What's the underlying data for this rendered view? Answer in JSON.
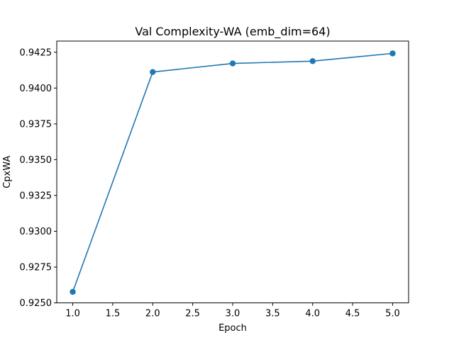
{
  "chart_data": {
    "type": "line",
    "title": "Val Complexity-WA (emb_dim=64)",
    "xlabel": "Epoch",
    "ylabel": "CpxWA",
    "x": [
      1,
      2,
      3,
      4,
      5
    ],
    "series": [
      {
        "values": [
          0.92577,
          0.94112,
          0.94172,
          0.94188,
          0.94242
        ],
        "color": "#1f77b4",
        "marker": "circle"
      }
    ],
    "xlim": [
      0.8,
      5.2
    ],
    "ylim": [
      0.925,
      0.94328
    ],
    "xticks": [
      1.0,
      1.5,
      2.0,
      2.5,
      3.0,
      3.5,
      4.0,
      4.5,
      5.0
    ],
    "xtick_labels": [
      "1.0",
      "1.5",
      "2.0",
      "2.5",
      "3.0",
      "3.5",
      "4.0",
      "4.5",
      "5.0"
    ],
    "yticks": [
      0.925,
      0.9275,
      0.93,
      0.9325,
      0.935,
      0.9375,
      0.94,
      0.9425
    ],
    "ytick_labels": [
      "0.9250",
      "0.9275",
      "0.9300",
      "0.9325",
      "0.9350",
      "0.9375",
      "0.9400",
      "0.9425"
    ],
    "grid": false,
    "legend": "none"
  }
}
